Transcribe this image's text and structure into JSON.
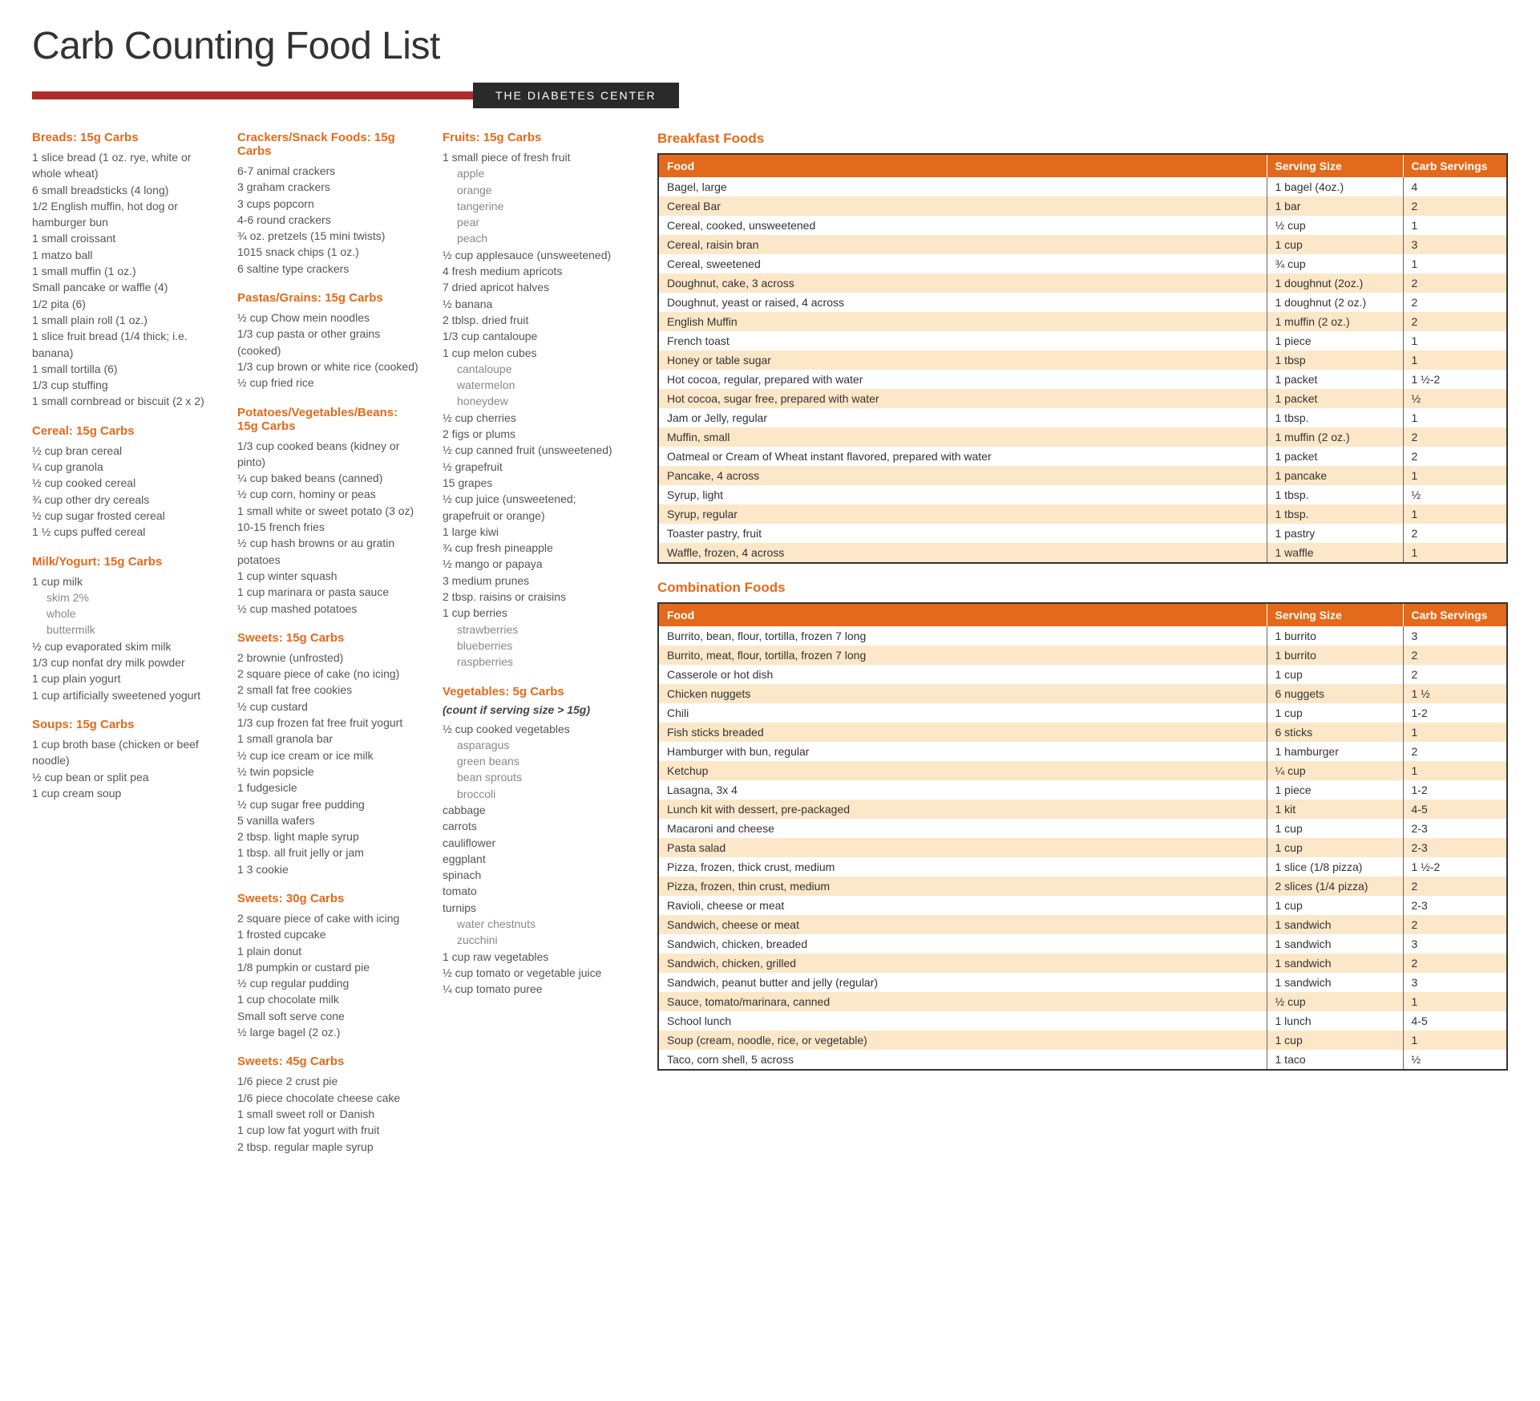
{
  "title": "Carb Counting Food List",
  "center_tag": "THE DIABETES CENTER",
  "colors": {
    "accent": "#e36a1a",
    "red_bar": "#b02a2a",
    "dark": "#2a2a2a",
    "row_alt": "#fce7c8"
  },
  "columns": [
    [
      {
        "title": "Breads: 15g Carbs",
        "items": [
          "1 slice bread (1 oz. rye, white or whole wheat)",
          "6 small breadsticks (4 long)",
          "1/2 English muffin, hot dog or hamburger bun",
          "1 small croissant",
          "1 matzo ball",
          "1 small muffin (1 oz.)",
          "Small pancake or waffle (4)",
          "1/2 pita (6)",
          "1 small plain roll (1 oz.)",
          "1 slice fruit bread (1/4 thick; i.e. banana)",
          "1 small tortilla (6)",
          "1/3 cup stuffing",
          "1 small cornbread or biscuit (2 x 2)"
        ]
      },
      {
        "title": "Cereal: 15g Carbs",
        "items": [
          "½ cup bran cereal",
          "¼ cup granola",
          "½ cup cooked cereal",
          "¾ cup other dry cereals",
          "½ cup sugar frosted cereal",
          "1 ½ cups puffed cereal"
        ]
      },
      {
        "title": "Milk/Yogurt: 15g Carbs",
        "items": [
          "1 cup milk",
          {
            "text": "skim 2%",
            "sub": true
          },
          {
            "text": "whole",
            "sub": true
          },
          {
            "text": "buttermilk",
            "sub": true
          },
          "½ cup evaporated skim milk",
          "1/3 cup nonfat dry milk powder",
          "1 cup plain yogurt",
          "1 cup artificially sweetened yogurt"
        ]
      },
      {
        "title": "Soups: 15g Carbs",
        "items": [
          "1 cup broth base (chicken or beef noodle)",
          "½ cup bean or split pea",
          "1 cup cream soup"
        ]
      }
    ],
    [
      {
        "title": "Crackers/Snack Foods: 15g Carbs",
        "items": [
          "6-7 animal crackers",
          "3 graham crackers",
          "3 cups popcorn",
          "4-6 round crackers",
          "¾ oz. pretzels (15 mini twists)",
          "1015 snack chips (1 oz.)",
          "6 saltine type crackers"
        ]
      },
      {
        "title": "Pastas/Grains: 15g Carbs",
        "items": [
          "½ cup Chow mein noodles",
          "1/3 cup pasta or other grains (cooked)",
          "1/3 cup brown or white rice (cooked)",
          "½ cup fried rice"
        ]
      },
      {
        "title": "Potatoes/Vegetables/Beans: 15g Carbs",
        "items": [
          "1/3 cup cooked beans (kidney or pinto)",
          "¼ cup baked beans (canned)",
          "½ cup corn, hominy or peas",
          "1 small white or sweet potato (3 oz)",
          "10-15 french fries",
          "½ cup hash browns or au gratin potatoes",
          "1 cup winter squash",
          "1 cup marinara or pasta sauce",
          "½ cup mashed potatoes"
        ]
      },
      {
        "title": "Sweets: 15g Carbs",
        "items": [
          "2 brownie (unfrosted)",
          "2 square piece of cake (no icing)",
          "2 small fat free cookies",
          "½ cup custard",
          "1/3 cup frozen fat free fruit yogurt",
          "1 small granola bar",
          "½ cup ice cream or ice milk",
          "½ twin popsicle",
          "1 fudgesicle",
          "½ cup sugar free pudding",
          "5 vanilla wafers",
          "2 tbsp. light maple syrup",
          "1 tbsp. all fruit jelly or jam",
          "1 3 cookie"
        ]
      },
      {
        "title": "Sweets: 30g Carbs",
        "items": [
          "2 square piece of cake with icing",
          "1 frosted cupcake",
          "1 plain donut",
          "1/8 pumpkin or custard pie",
          "½ cup regular pudding",
          "1 cup chocolate milk",
          "Small soft serve cone",
          "½ large bagel (2 oz.)"
        ]
      },
      {
        "title": "Sweets: 45g Carbs",
        "items": [
          "1/6 piece 2 crust pie",
          "1/6 piece chocolate cheese cake",
          "1 small sweet roll or Danish",
          "1 cup low fat yogurt with fruit",
          "2 tbsp. regular maple syrup"
        ]
      }
    ],
    [
      {
        "title": "Fruits: 15g Carbs",
        "items": [
          "1 small piece of fresh fruit",
          {
            "text": "apple",
            "sub": true
          },
          {
            "text": "orange",
            "sub": true
          },
          {
            "text": "tangerine",
            "sub": true
          },
          {
            "text": "pear",
            "sub": true
          },
          {
            "text": "peach",
            "sub": true
          },
          "½ cup applesauce (unsweetened)",
          "4 fresh medium apricots",
          "7 dried apricot halves",
          "½ banana",
          "2 tblsp. dried fruit",
          "1/3 cup cantaloupe",
          "1 cup melon cubes",
          {
            "text": "cantaloupe",
            "sub": true
          },
          {
            "text": "watermelon",
            "sub": true
          },
          {
            "text": "honeydew",
            "sub": true
          },
          "½ cup cherries",
          "2 figs or plums",
          "½ cup canned fruit (unsweetened)",
          "½ grapefruit",
          "15 grapes",
          "½ cup juice (unsweetened; grapefruit or orange)",
          "1 large kiwi",
          "¾ cup fresh pineapple",
          "½ mango or papaya",
          "3 medium prunes",
          "2 tbsp. raisins or craisins",
          "1 cup berries",
          {
            "text": "strawberries",
            "sub": true
          },
          {
            "text": "blueberries",
            "sub": true
          },
          {
            "text": "raspberries",
            "sub": true
          }
        ]
      },
      {
        "title": "Vegetables: 5g Carbs",
        "subtitle": "(count if serving size > 15g)",
        "items": [
          "½ cup cooked vegetables",
          {
            "text": "asparagus",
            "sub": true
          },
          {
            "text": "green beans",
            "sub": true
          },
          {
            "text": "bean sprouts",
            "sub": true
          },
          {
            "text": "broccoli",
            "sub": true
          },
          "cabbage",
          "carrots",
          "cauliflower",
          "eggplant",
          "spinach",
          "tomato",
          "turnips",
          {
            "text": "water chestnuts",
            "sub": true
          },
          {
            "text": "zucchini",
            "sub": true
          },
          "1 cup raw vegetables",
          "½ cup tomato or vegetable juice",
          "¼ cup tomato puree"
        ]
      }
    ]
  ],
  "tables": [
    {
      "title": "Breakfast Foods",
      "headers": [
        "Food",
        "Serving Size",
        "Carb Servings"
      ],
      "rows": [
        [
          "Bagel, large",
          "1 bagel (4oz.)",
          "4"
        ],
        [
          "Cereal Bar",
          "1 bar",
          "2"
        ],
        [
          "Cereal, cooked, unsweetened",
          "½ cup",
          "1"
        ],
        [
          "Cereal, raisin bran",
          "1 cup",
          "3"
        ],
        [
          "Cereal, sweetened",
          "¾ cup",
          "1"
        ],
        [
          "Doughnut, cake, 3 across",
          "1 doughnut (2oz.)",
          "2"
        ],
        [
          "Doughnut, yeast or raised, 4 across",
          "1 doughnut (2 oz.)",
          "2"
        ],
        [
          "English Muffin",
          "1 muffin (2 oz.)",
          "2"
        ],
        [
          "French toast",
          "1 piece",
          "1"
        ],
        [
          "Honey or table sugar",
          "1 tbsp",
          "1"
        ],
        [
          "Hot cocoa, regular, prepared with water",
          "1 packet",
          "1 ½-2"
        ],
        [
          "Hot cocoa, sugar free, prepared with water",
          "1 packet",
          "½"
        ],
        [
          "Jam or Jelly, regular",
          "1 tbsp.",
          "1"
        ],
        [
          "Muffin, small",
          "1 muffin (2 oz.)",
          "2"
        ],
        [
          "Oatmeal or Cream of Wheat instant flavored, prepared with water",
          "1 packet",
          "2"
        ],
        [
          "Pancake, 4 across",
          "1 pancake",
          "1"
        ],
        [
          "Syrup, light",
          "1 tbsp.",
          "½"
        ],
        [
          "Syrup, regular",
          "1 tbsp.",
          "1"
        ],
        [
          "Toaster pastry, fruit",
          "1 pastry",
          "2"
        ],
        [
          "Waffle, frozen, 4 across",
          "1 waffle",
          "1"
        ]
      ]
    },
    {
      "title": "Combination Foods",
      "headers": [
        "Food",
        "Serving Size",
        "Carb Servings"
      ],
      "rows": [
        [
          "Burrito, bean, flour, tortilla, frozen 7 long",
          "1 burrito",
          "3"
        ],
        [
          "Burrito, meat, flour, tortilla, frozen 7 long",
          "1 burrito",
          "2"
        ],
        [
          "Casserole or hot dish",
          "1 cup",
          "2"
        ],
        [
          "Chicken nuggets",
          "6 nuggets",
          "1 ½"
        ],
        [
          "Chili",
          "1 cup",
          "1-2"
        ],
        [
          "Fish sticks breaded",
          "6 sticks",
          "1"
        ],
        [
          "Hamburger with bun, regular",
          "1 hamburger",
          "2"
        ],
        [
          "Ketchup",
          "¼ cup",
          "1"
        ],
        [
          "Lasagna, 3x 4",
          "1 piece",
          "1-2"
        ],
        [
          "Lunch kit with dessert, pre-packaged",
          "1 kit",
          "4-5"
        ],
        [
          "Macaroni and cheese",
          "1 cup",
          "2-3"
        ],
        [
          "Pasta salad",
          "1 cup",
          "2-3"
        ],
        [
          "Pizza, frozen, thick crust, medium",
          "1 slice (1/8 pizza)",
          "1 ½-2"
        ],
        [
          "Pizza, frozen, thin crust, medium",
          "2 slices (1/4 pizza)",
          "2"
        ],
        [
          "Ravioli, cheese or meat",
          "1 cup",
          "2-3"
        ],
        [
          "Sandwich, cheese or meat",
          "1 sandwich",
          "2"
        ],
        [
          "Sandwich, chicken, breaded",
          "1 sandwich",
          "3"
        ],
        [
          "Sandwich, chicken, grilled",
          "1 sandwich",
          "2"
        ],
        [
          "Sandwich, peanut butter and jelly (regular)",
          "1 sandwich",
          "3"
        ],
        [
          "Sauce, tomato/marinara, canned",
          "½ cup",
          "1"
        ],
        [
          "School lunch",
          "1 lunch",
          "4-5"
        ],
        [
          "Soup (cream, noodle, rice, or vegetable)",
          "1 cup",
          "1"
        ],
        [
          "Taco, corn shell, 5 across",
          "1 taco",
          "½"
        ]
      ]
    }
  ]
}
